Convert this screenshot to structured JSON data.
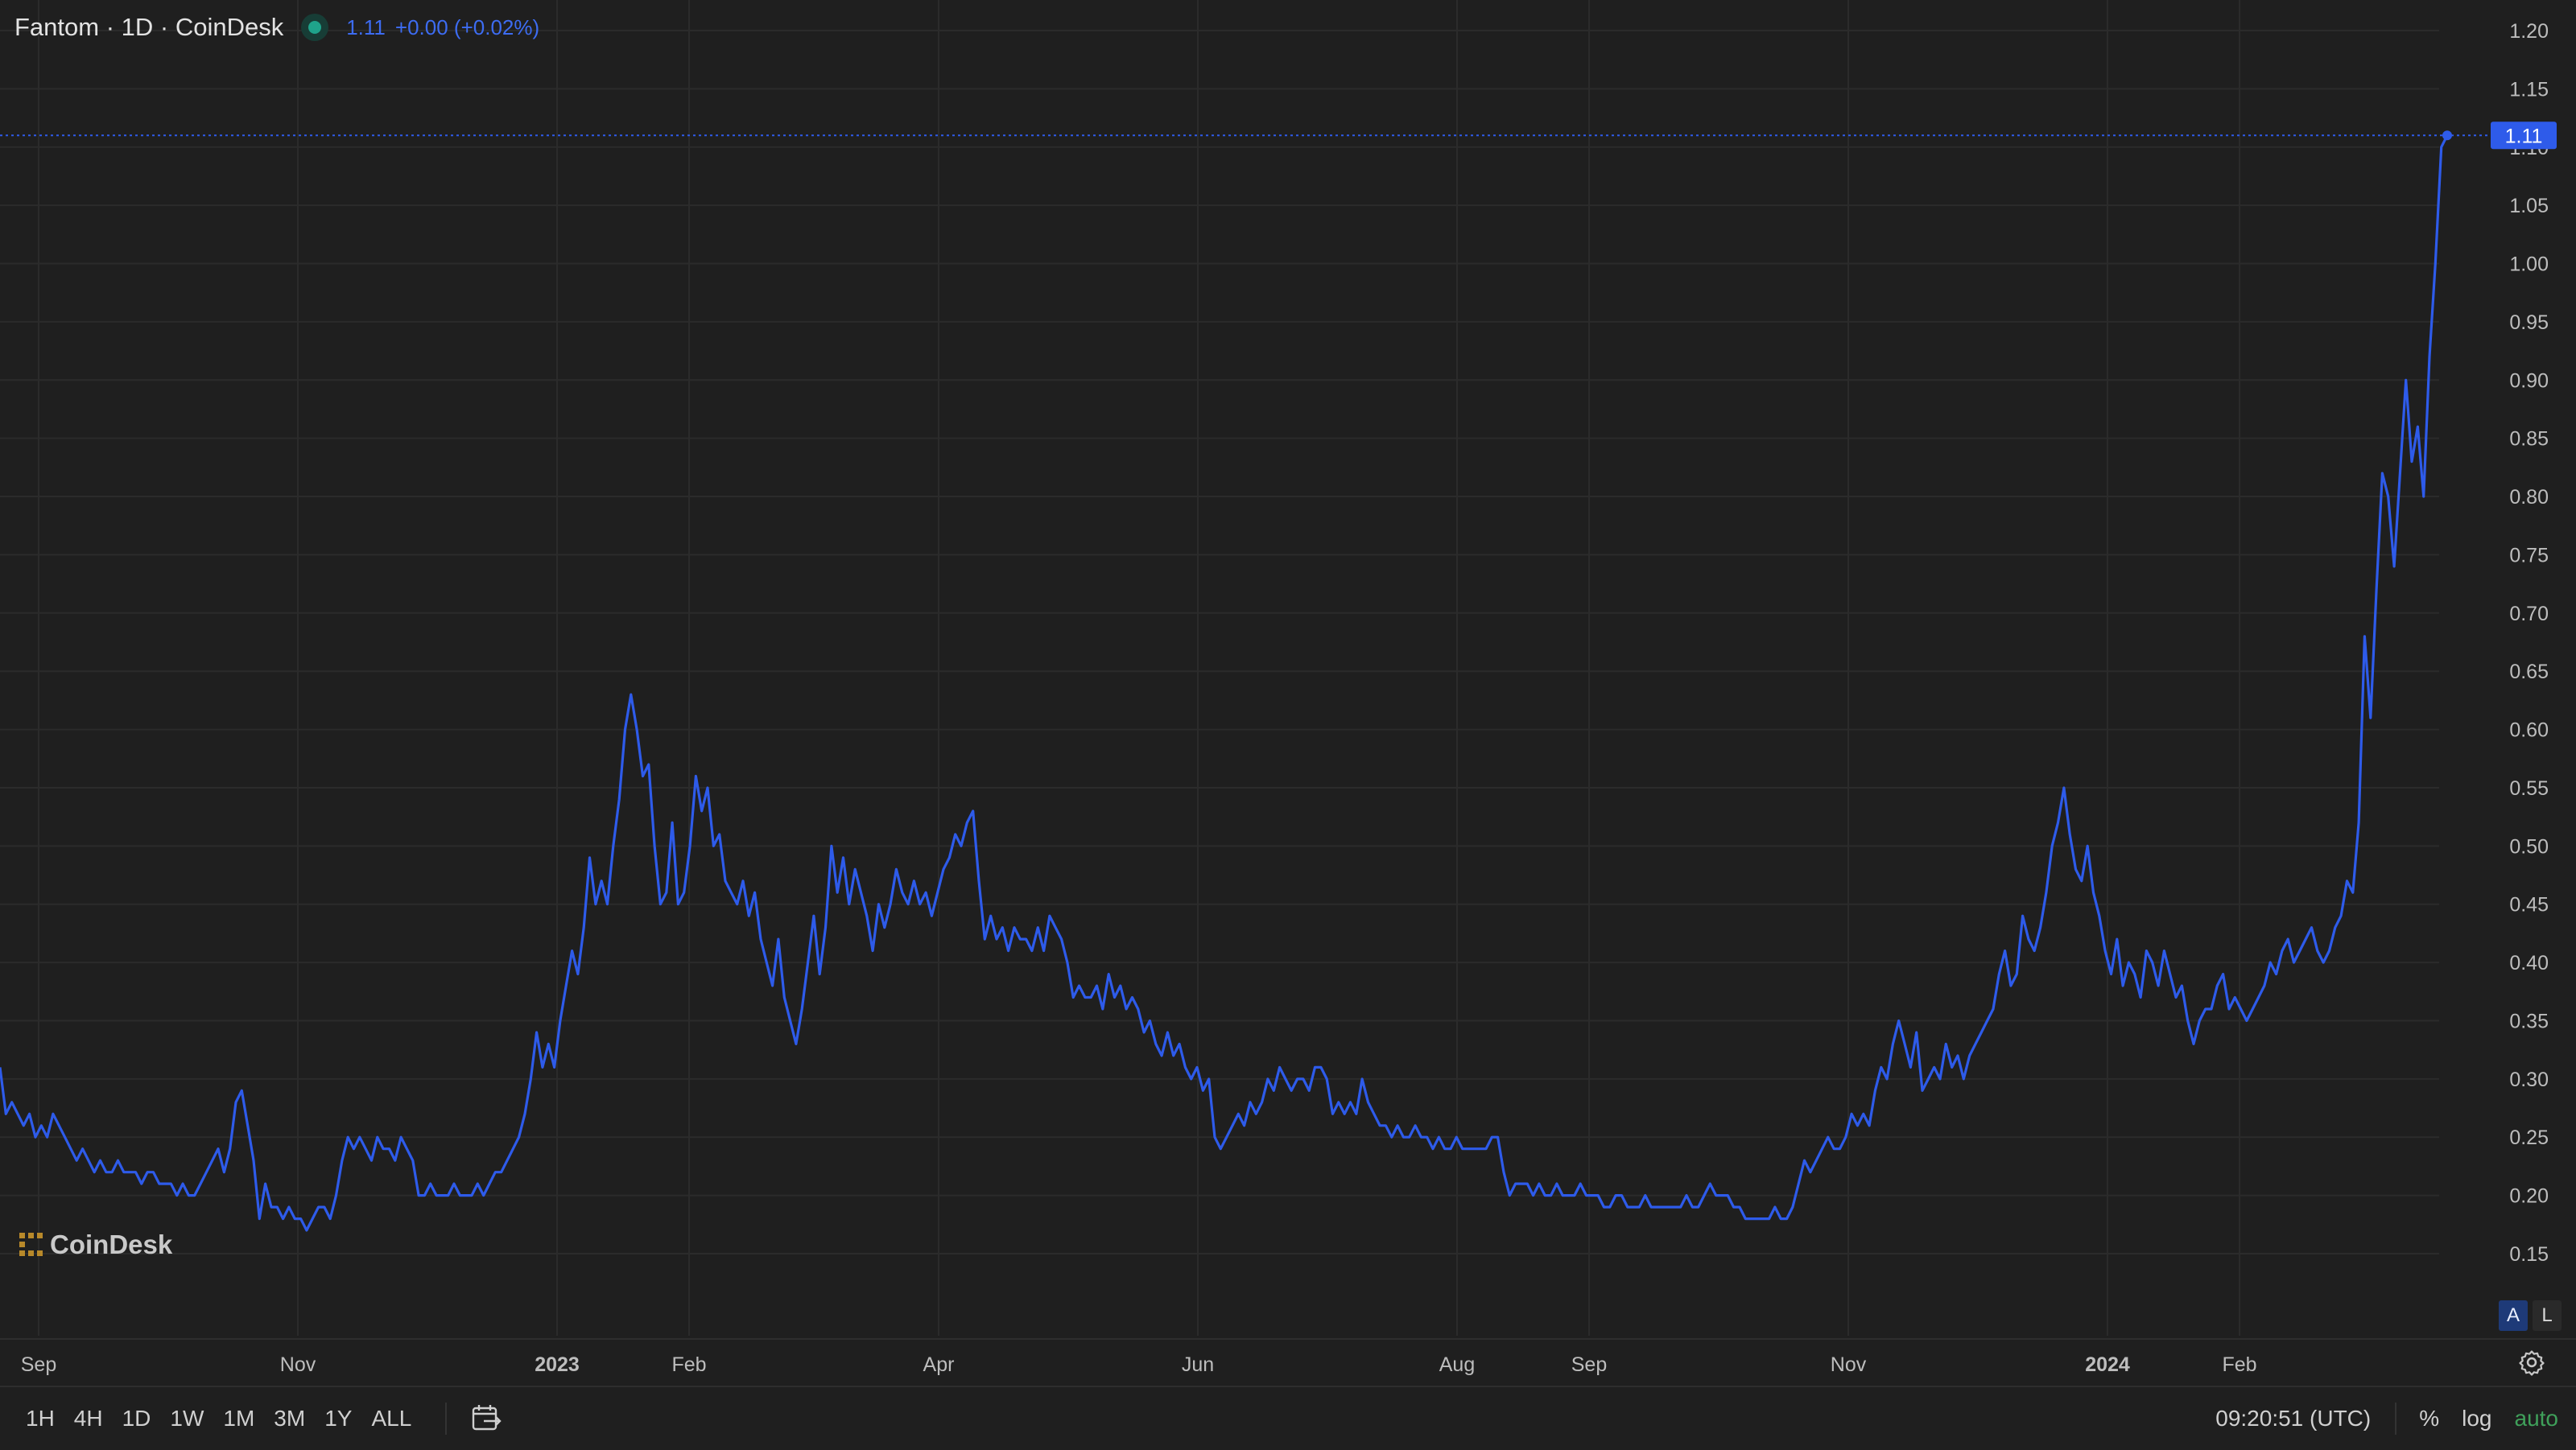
{
  "header": {
    "symbol_label": "Fantom · 1D · CoinDesk",
    "price": "1.11",
    "change": "+0.00 (+0.02%)"
  },
  "watermark": {
    "text": "CoinDesk"
  },
  "timeframes": [
    "1H",
    "4H",
    "1D",
    "1W",
    "1M",
    "3M",
    "1Y",
    "ALL"
  ],
  "footer": {
    "clock": "09:20:51 (UTC)",
    "percent_label": "%",
    "log_label": "log",
    "auto_label": "auto"
  },
  "axis_buttons": {
    "auto": "A",
    "log": "L"
  },
  "colors": {
    "line": "#2e5bea",
    "background": "#1f1f1f",
    "grid": "#2b2b2b",
    "auto_active": "#3fa05a"
  },
  "icons": {
    "calendar": "calendar-range-icon",
    "settings": "gear-icon",
    "status": "status-dot-icon",
    "logo": "coindesk-logo-icon"
  },
  "chart_data": {
    "type": "line",
    "series": [
      {
        "values": [
          0.31,
          0.27,
          0.28,
          0.27,
          0.26,
          0.27,
          0.25,
          0.26,
          0.25,
          0.27,
          0.26,
          0.25,
          0.24,
          0.23,
          0.24,
          0.23,
          0.22,
          0.23,
          0.22,
          0.22,
          0.23,
          0.22,
          0.22,
          0.22,
          0.21,
          0.22,
          0.22,
          0.21,
          0.21,
          0.21,
          0.2,
          0.21,
          0.2,
          0.2,
          0.21,
          0.22,
          0.23,
          0.24,
          0.22,
          0.24,
          0.28,
          0.29,
          0.26,
          0.23,
          0.18,
          0.21,
          0.19,
          0.19,
          0.18,
          0.19,
          0.18,
          0.18,
          0.17,
          0.18,
          0.19,
          0.19,
          0.18,
          0.2,
          0.23,
          0.25,
          0.24,
          0.25,
          0.24,
          0.23,
          0.25,
          0.24,
          0.24,
          0.23,
          0.25,
          0.24,
          0.23,
          0.2,
          0.2,
          0.21,
          0.2,
          0.2,
          0.2,
          0.21,
          0.2,
          0.2,
          0.2,
          0.21,
          0.2,
          0.21,
          0.22,
          0.22,
          0.23,
          0.24,
          0.25,
          0.27,
          0.3,
          0.34,
          0.31,
          0.33,
          0.31,
          0.35,
          0.38,
          0.41,
          0.39,
          0.43,
          0.49,
          0.45,
          0.47,
          0.45,
          0.5,
          0.54,
          0.6,
          0.63,
          0.6,
          0.56,
          0.57,
          0.5,
          0.45,
          0.46,
          0.52,
          0.45,
          0.46,
          0.5,
          0.56,
          0.53,
          0.55,
          0.5,
          0.51,
          0.47,
          0.46,
          0.45,
          0.47,
          0.44,
          0.46,
          0.42,
          0.4,
          0.38,
          0.42,
          0.37,
          0.35,
          0.33,
          0.36,
          0.4,
          0.44,
          0.39,
          0.43,
          0.5,
          0.46,
          0.49,
          0.45,
          0.48,
          0.46,
          0.44,
          0.41,
          0.45,
          0.43,
          0.45,
          0.48,
          0.46,
          0.45,
          0.47,
          0.45,
          0.46,
          0.44,
          0.46,
          0.48,
          0.49,
          0.51,
          0.5,
          0.52,
          0.53,
          0.47,
          0.42,
          0.44,
          0.42,
          0.43,
          0.41,
          0.43,
          0.42,
          0.42,
          0.41,
          0.43,
          0.41,
          0.44,
          0.43,
          0.42,
          0.4,
          0.37,
          0.38,
          0.37,
          0.37,
          0.38,
          0.36,
          0.39,
          0.37,
          0.38,
          0.36,
          0.37,
          0.36,
          0.34,
          0.35,
          0.33,
          0.32,
          0.34,
          0.32,
          0.33,
          0.31,
          0.3,
          0.31,
          0.29,
          0.3,
          0.25,
          0.24,
          0.25,
          0.26,
          0.27,
          0.26,
          0.28,
          0.27,
          0.28,
          0.3,
          0.29,
          0.31,
          0.3,
          0.29,
          0.3,
          0.3,
          0.29,
          0.31,
          0.31,
          0.3,
          0.27,
          0.28,
          0.27,
          0.28,
          0.27,
          0.3,
          0.28,
          0.27,
          0.26,
          0.26,
          0.25,
          0.26,
          0.25,
          0.25,
          0.26,
          0.25,
          0.25,
          0.24,
          0.25,
          0.24,
          0.24,
          0.25,
          0.24,
          0.24,
          0.24,
          0.24,
          0.24,
          0.25,
          0.25,
          0.22,
          0.2,
          0.21,
          0.21,
          0.21,
          0.2,
          0.21,
          0.2,
          0.2,
          0.21,
          0.2,
          0.2,
          0.2,
          0.21,
          0.2,
          0.2,
          0.2,
          0.19,
          0.19,
          0.2,
          0.2,
          0.19,
          0.19,
          0.19,
          0.2,
          0.19,
          0.19,
          0.19,
          0.19,
          0.19,
          0.19,
          0.2,
          0.19,
          0.19,
          0.2,
          0.21,
          0.2,
          0.2,
          0.2,
          0.19,
          0.19,
          0.18,
          0.18,
          0.18,
          0.18,
          0.18,
          0.19,
          0.18,
          0.18,
          0.19,
          0.21,
          0.23,
          0.22,
          0.23,
          0.24,
          0.25,
          0.24,
          0.24,
          0.25,
          0.27,
          0.26,
          0.27,
          0.26,
          0.29,
          0.31,
          0.3,
          0.33,
          0.35,
          0.33,
          0.31,
          0.34,
          0.29,
          0.3,
          0.31,
          0.3,
          0.33,
          0.31,
          0.32,
          0.3,
          0.32,
          0.33,
          0.34,
          0.35,
          0.36,
          0.39,
          0.41,
          0.38,
          0.39,
          0.44,
          0.42,
          0.41,
          0.43,
          0.46,
          0.5,
          0.52,
          0.55,
          0.51,
          0.48,
          0.47,
          0.5,
          0.46,
          0.44,
          0.41,
          0.39,
          0.42,
          0.38,
          0.4,
          0.39,
          0.37,
          0.41,
          0.4,
          0.38,
          0.41,
          0.39,
          0.37,
          0.38,
          0.35,
          0.33,
          0.35,
          0.36,
          0.36,
          0.38,
          0.39,
          0.36,
          0.37,
          0.36,
          0.35,
          0.36,
          0.37,
          0.38,
          0.4,
          0.39,
          0.41,
          0.42,
          0.4,
          0.41,
          0.42,
          0.43,
          0.41,
          0.4,
          0.41,
          0.43,
          0.44,
          0.47,
          0.46,
          0.52,
          0.68,
          0.61,
          0.72,
          0.82,
          0.8,
          0.74,
          0.82,
          0.9,
          0.83,
          0.86,
          0.8,
          0.92,
          1.0,
          1.1,
          1.11
        ]
      }
    ],
    "x_ticks": [
      "Sep",
      "Nov",
      "2023",
      "Feb",
      "Apr",
      "Jun",
      "Aug",
      "Sep",
      "Nov",
      "2024",
      "Feb"
    ],
    "y_ticks": [
      "1.20",
      "1.15",
      "1.10",
      "1.05",
      "1.00",
      "0.95",
      "0.90",
      "0.85",
      "0.80",
      "0.75",
      "0.70",
      "0.65",
      "0.60",
      "0.55",
      "0.50",
      "0.45",
      "0.40",
      "0.35",
      "0.30",
      "0.25",
      "0.20",
      "0.15"
    ],
    "ylim": [
      0.11,
      1.21
    ],
    "last_value_label": "1.11",
    "grid": true,
    "scale": "linear"
  }
}
